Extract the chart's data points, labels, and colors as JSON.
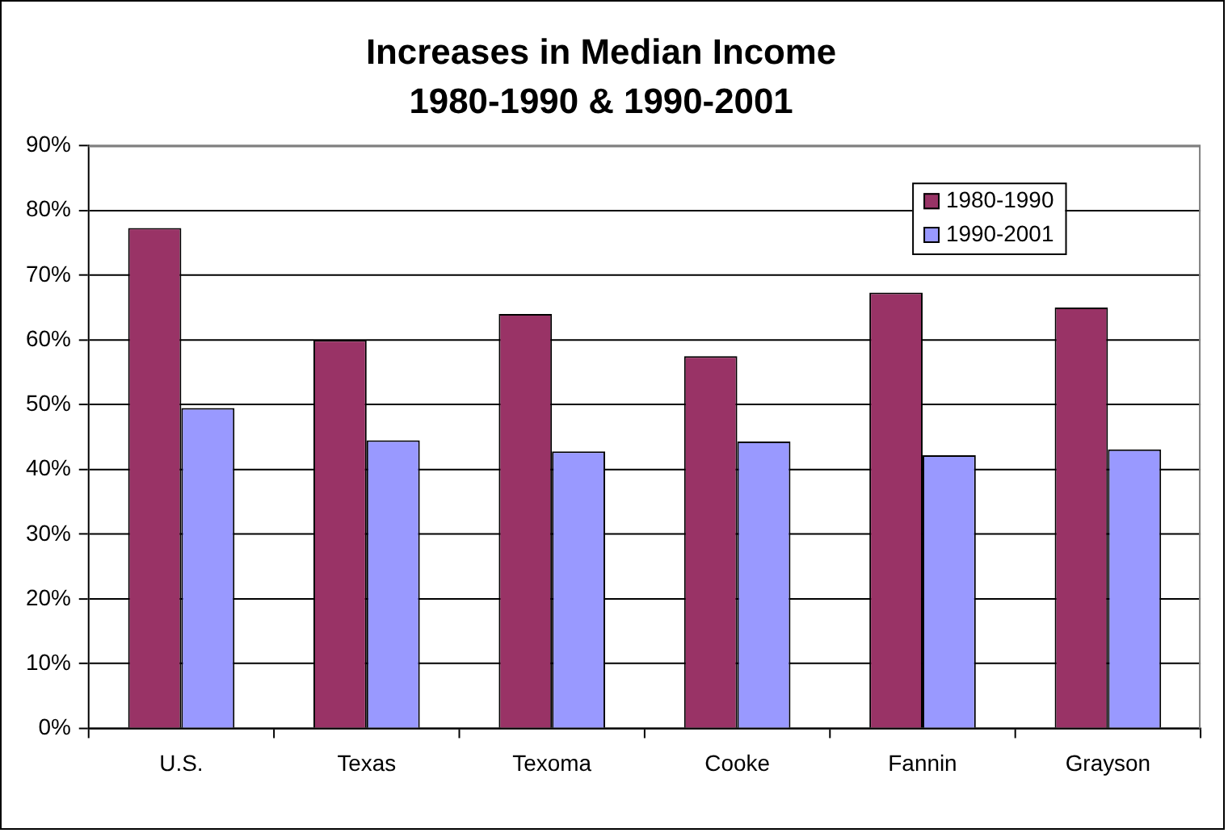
{
  "chart_data": {
    "type": "bar",
    "title": "Increases in Median Income 1980-1990 & 1990-2001",
    "categories": [
      "U.S.",
      "Texas",
      "Texoma",
      "Cooke",
      "Fannin",
      "Grayson"
    ],
    "series": [
      {
        "name": "1980-1990",
        "color": "#993366",
        "values": [
          77.3,
          60,
          64,
          57.5,
          67.3,
          65
        ]
      },
      {
        "name": "1990-2001",
        "color": "#9999ff",
        "values": [
          49.5,
          44.5,
          42.8,
          44.3,
          42.2,
          43.1
        ]
      }
    ],
    "ylim": [
      0,
      90
    ],
    "yticks": [
      {
        "value": 0,
        "label": "0%"
      },
      {
        "value": 10,
        "label": "10%"
      },
      {
        "value": 20,
        "label": "20%"
      },
      {
        "value": 30,
        "label": "30%"
      },
      {
        "value": 40,
        "label": "40%"
      },
      {
        "value": 50,
        "label": "50%"
      },
      {
        "value": 60,
        "label": "60%"
      },
      {
        "value": 70,
        "label": "70%"
      },
      {
        "value": 80,
        "label": "80%"
      },
      {
        "value": 90,
        "label": "90%"
      }
    ],
    "grid": "y",
    "legend": "top right"
  }
}
